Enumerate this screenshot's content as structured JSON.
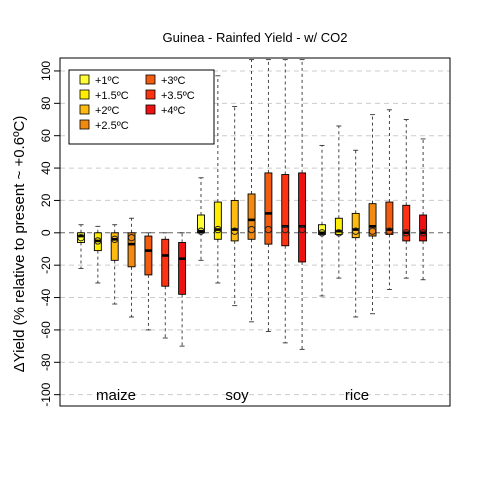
{
  "chart_data": {
    "type": "boxplot",
    "title": "Guinea - Rainfed Yield - w/ CO2",
    "ylabel": "ΔYield (% relative to present ~ +0.6ºC)",
    "xlabel": "",
    "ylim": [
      -107,
      108
    ],
    "yticks": [
      -100,
      -80,
      -60,
      -40,
      -20,
      0,
      20,
      40,
      60,
      80,
      100
    ],
    "grid": "horizontal-dashed",
    "legend_position": "top-left",
    "legend": [
      {
        "label": "+1ºC",
        "color": "#FFFF33"
      },
      {
        "label": "+1.5ºC",
        "color": "#FFEE00"
      },
      {
        "label": "+2ºC",
        "color": "#FFBB11"
      },
      {
        "label": "+2.5ºC",
        "color": "#F28A11"
      },
      {
        "label": "+3ºC",
        "color": "#F25C11"
      },
      {
        "label": "+3.5ºC",
        "color": "#FF3311"
      },
      {
        "label": "+4ºC",
        "color": "#EE1111"
      }
    ],
    "group_labels": [
      "maize",
      "soy",
      "rice"
    ],
    "groups": [
      {
        "name": "maize",
        "boxes": [
          {
            "warming": "+1ºC",
            "min": -22,
            "q1": -6,
            "median": -2,
            "q3": 0,
            "max": 5,
            "mean": -3
          },
          {
            "warming": "+1.5ºC",
            "min": -31,
            "q1": -11,
            "median": -5,
            "q3": 0,
            "max": 4,
            "mean": -5
          },
          {
            "warming": "+2ºC",
            "min": -44,
            "q1": -17,
            "median": -4,
            "q3": 0,
            "max": 5,
            "mean": -4
          },
          {
            "warming": "+2.5ºC",
            "min": -52,
            "q1": -21,
            "median": -7,
            "q3": 0,
            "max": 9,
            "mean": -3
          },
          {
            "warming": "+3ºC",
            "min": -60,
            "q1": -26,
            "median": -11,
            "q3": -2,
            "max": 0,
            "mean": null
          },
          {
            "warming": "+3.5ºC",
            "min": -65,
            "q1": -33,
            "median": -14,
            "q3": -4,
            "max": 0,
            "mean": null
          },
          {
            "warming": "+4ºC",
            "min": -70,
            "q1": -38,
            "median": -16,
            "q3": -6,
            "max": 0,
            "mean": null
          }
        ]
      },
      {
        "name": "soy",
        "boxes": [
          {
            "warming": "+1ºC",
            "min": -17,
            "q1": 0,
            "median": 1,
            "q3": 11,
            "max": 34,
            "mean": 1
          },
          {
            "warming": "+1.5ºC",
            "min": -31,
            "q1": -4,
            "median": 2,
            "q3": 19,
            "max": 97,
            "mean": 2
          },
          {
            "warming": "+2ºC",
            "min": -45,
            "q1": -5,
            "median": 2,
            "q3": 20,
            "max": 78,
            "mean": 1
          },
          {
            "warming": "+2.5ºC",
            "min": -55,
            "q1": -4,
            "median": 8,
            "q3": 24,
            "max": 107,
            "mean": 2
          },
          {
            "warming": "+3ºC",
            "min": -61,
            "q1": -7,
            "median": 12,
            "q3": 37,
            "max": 107,
            "mean": 2
          },
          {
            "warming": "+3.5ºC",
            "min": -68,
            "q1": -8,
            "median": 4,
            "q3": 36,
            "max": 107,
            "mean": 2
          },
          {
            "warming": "+4ºC",
            "min": -72,
            "q1": -18,
            "median": 4,
            "q3": 37,
            "max": 107,
            "mean": 2
          }
        ]
      },
      {
        "name": "rice",
        "boxes": [
          {
            "warming": "+1ºC",
            "min": -39,
            "q1": -1,
            "median": 0,
            "q3": 5,
            "max": 54,
            "mean": 0
          },
          {
            "warming": "+1.5ºC",
            "min": -28,
            "q1": -1,
            "median": 1,
            "q3": 9,
            "max": 66,
            "mean": 0
          },
          {
            "warming": "+2ºC",
            "min": -52,
            "q1": -3,
            "median": 2,
            "q3": 12,
            "max": 51,
            "mean": 1
          },
          {
            "warming": "+2.5ºC",
            "min": -50,
            "q1": -2,
            "median": 4,
            "q3": 18,
            "max": 73,
            "mean": 1
          },
          {
            "warming": "+3ºC",
            "min": -35,
            "q1": -1,
            "median": 2,
            "q3": 19,
            "max": 76,
            "mean": 1
          },
          {
            "warming": "+3.5ºC",
            "min": -28,
            "q1": -5,
            "median": 0,
            "q3": 17,
            "max": 70,
            "mean": 0
          },
          {
            "warming": "+4ºC",
            "min": -29,
            "q1": -5,
            "median": 0,
            "q3": 11,
            "max": 58,
            "mean": 0
          }
        ]
      }
    ]
  }
}
